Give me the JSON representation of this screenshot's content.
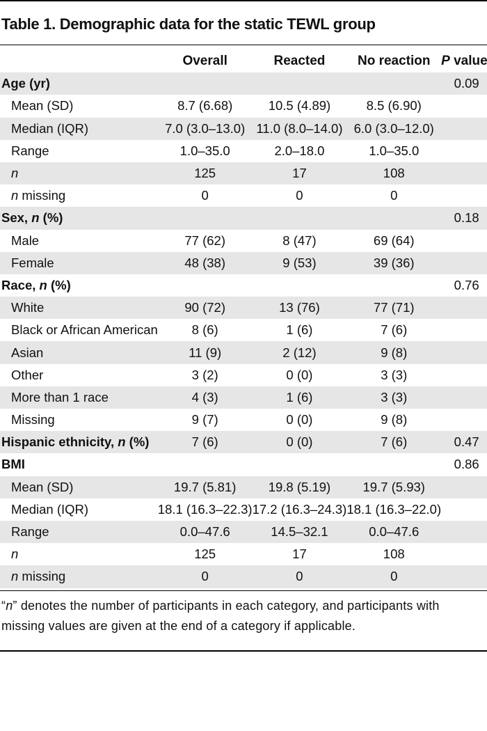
{
  "title": "Table 1. Demographic data for the static TEWL group",
  "columns": [
    "Overall",
    "Reacted",
    "No reaction",
    "P value"
  ],
  "rows": [
    {
      "label": "Age (yr)",
      "type": "section",
      "values": [
        "",
        "",
        "",
        "0.09"
      ]
    },
    {
      "label": "Mean (SD)",
      "values": [
        "8.7 (6.68)",
        "10.5 (4.89)",
        "8.5 (6.90)",
        ""
      ]
    },
    {
      "label": "Median (IQR)",
      "values": [
        "7.0 (3.0–13.0)",
        "11.0 (8.0–14.0)",
        "6.0 (3.0–12.0)",
        ""
      ]
    },
    {
      "label": "Range",
      "values": [
        "1.0–35.0",
        "2.0–18.0",
        "1.0–35.0",
        ""
      ]
    },
    {
      "label": "n",
      "values": [
        "125",
        "17",
        "108",
        ""
      ]
    },
    {
      "label": "n missing",
      "values": [
        "0",
        "0",
        "0",
        ""
      ]
    },
    {
      "label": "Sex, n (%)",
      "type": "section",
      "values": [
        "",
        "",
        "",
        "0.18"
      ]
    },
    {
      "label": "Male",
      "values": [
        "77 (62)",
        "8 (47)",
        "69 (64)",
        ""
      ]
    },
    {
      "label": "Female",
      "values": [
        "48 (38)",
        "9 (53)",
        "39 (36)",
        ""
      ]
    },
    {
      "label": "Race, n (%)",
      "type": "section",
      "values": [
        "",
        "",
        "",
        "0.76"
      ]
    },
    {
      "label": "White",
      "values": [
        "90 (72)",
        "13 (76)",
        "77 (71)",
        ""
      ]
    },
    {
      "label": "Black or African American",
      "values": [
        "8 (6)",
        "1 (6)",
        "7 (6)",
        ""
      ]
    },
    {
      "label": "Asian",
      "values": [
        "11 (9)",
        "2 (12)",
        "9 (8)",
        ""
      ]
    },
    {
      "label": "Other",
      "values": [
        "3 (2)",
        "0 (0)",
        "3 (3)",
        ""
      ]
    },
    {
      "label": "More than 1 race",
      "values": [
        "4 (3)",
        "1 (6)",
        "3 (3)",
        ""
      ]
    },
    {
      "label": "Missing",
      "values": [
        "9 (7)",
        "0 (0)",
        "9 (8)",
        ""
      ]
    },
    {
      "label": "Hispanic ethnicity, n (%)",
      "type": "section",
      "values": [
        "7 (6)",
        "0 (0)",
        "7 (6)",
        "0.47"
      ]
    },
    {
      "label": "BMI",
      "type": "section",
      "values": [
        "",
        "",
        "",
        "0.86"
      ]
    },
    {
      "label": "Mean (SD)",
      "values": [
        "19.7 (5.81)",
        "19.8 (5.19)",
        "19.7 (5.93)",
        ""
      ]
    },
    {
      "label": "Median (IQR)",
      "values": [
        "18.1 (16.3–22.3)",
        "17.2 (16.3–24.3)",
        "18.1 (16.3–22.0)",
        ""
      ]
    },
    {
      "label": "Range",
      "values": [
        "0.0–47.6",
        "14.5–32.1",
        "0.0–47.6",
        ""
      ]
    },
    {
      "label": "n",
      "values": [
        "125",
        "17",
        "108",
        ""
      ]
    },
    {
      "label": "n missing",
      "values": [
        "0",
        "0",
        "0",
        ""
      ]
    }
  ],
  "footnote": "“n” denotes the number of participants in each category, and participants with missing values are given at the end of a category if applicable."
}
